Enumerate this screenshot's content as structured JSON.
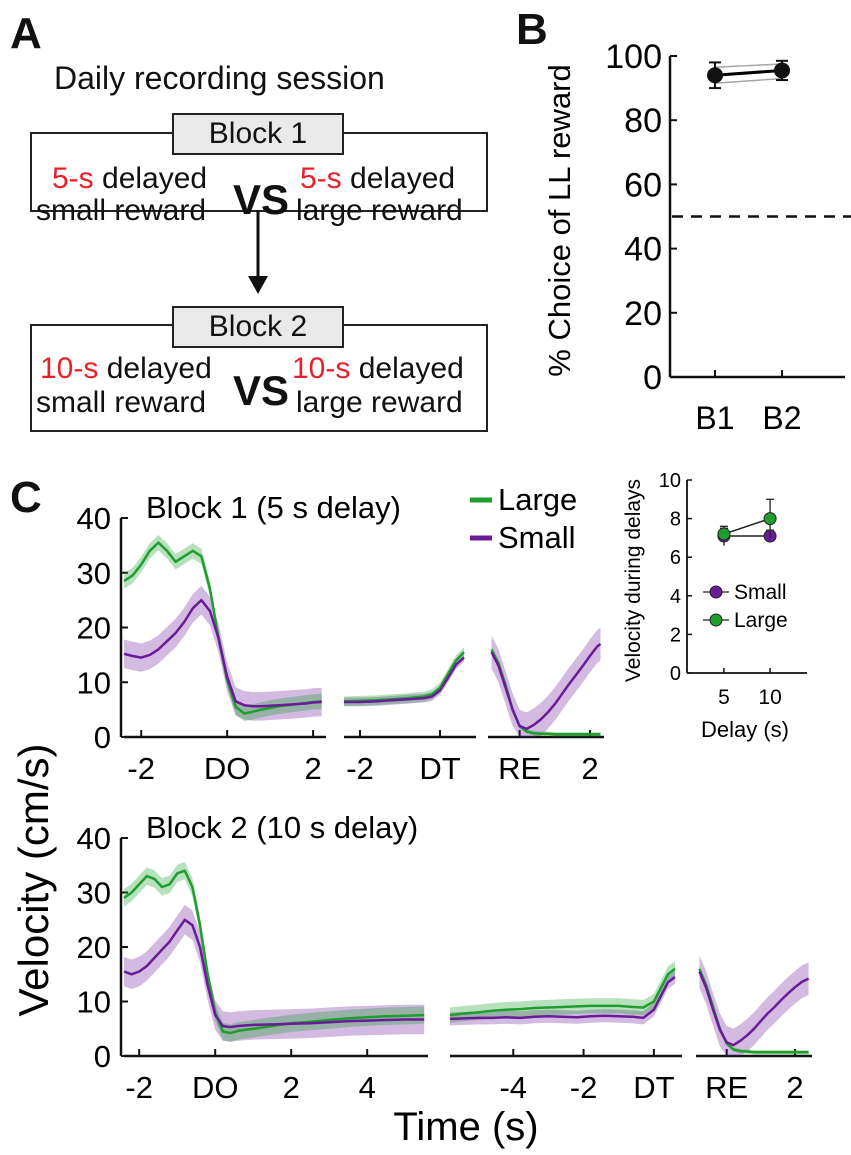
{
  "panelA": {
    "letter": "A",
    "title": "Daily recording  session",
    "block1": {
      "label": "Block 1",
      "left_delay": "5-s",
      "left_line1_rest": " delayed",
      "left_line2": "small reward",
      "vs": "VS",
      "right_delay": "5-s",
      "right_line1_rest": " delayed",
      "right_line2": "large reward"
    },
    "block2": {
      "label": "Block 2",
      "left_delay": "10-s",
      "left_line1_rest": " delayed",
      "left_line2": "small reward",
      "vs": "VS",
      "right_delay": "10-s",
      "right_line1_rest": " delayed",
      "right_line2": "large reward"
    }
  },
  "panelB": {
    "letter": "B"
  },
  "panelC": {
    "letter": "C",
    "ylabel": "Velocity (cm/s)",
    "xlabel": "Time (s)",
    "top_title": "Block 1 (5 s delay)",
    "bottom_title": "Block 2 (10 s delay)",
    "legend": [
      {
        "name": "Large",
        "color": "#1f9e2e"
      },
      {
        "name": "Small",
        "color": "#6a1b9a"
      }
    ]
  },
  "chart_data": [
    {
      "id": "B",
      "type": "scatter",
      "title": "",
      "xlabel": "",
      "ylabel": "% Choice of LL reward",
      "categories": [
        "B1",
        "B2"
      ],
      "values": [
        94,
        95.5
      ],
      "errors": [
        4,
        3
      ],
      "individual_lines": [
        [
          96.5,
          97.5
        ],
        [
          91.5,
          93
        ]
      ],
      "reference_line": 50,
      "ylim": [
        0,
        100
      ],
      "yticks": [
        0,
        20,
        40,
        60,
        80,
        100
      ],
      "colors": {
        "mean": "#000000",
        "individual": "#a6a6a6"
      }
    },
    {
      "id": "C-inset",
      "type": "scatter",
      "title": "",
      "xlabel": "Delay (s)",
      "ylabel": "Velocity during delays",
      "x": [
        5,
        10
      ],
      "xticks": [
        5,
        10
      ],
      "xlim": [
        1,
        14
      ],
      "ylim": [
        0,
        10
      ],
      "yticks": [
        0,
        2,
        4,
        6,
        8,
        10
      ],
      "series": [
        {
          "name": "Small",
          "values": [
            7.1,
            7.1
          ],
          "errors": [
            0.5,
            0.3
          ],
          "color": "#6a1b9a"
        },
        {
          "name": "Large",
          "values": [
            7.2,
            8.0
          ],
          "errors": [
            0.3,
            1.0
          ],
          "color": "#1f9e2e"
        }
      ]
    },
    {
      "id": "C-top",
      "type": "line",
      "title": "Block 1 (5 s delay)",
      "ylabel": "Velocity (cm/s)",
      "ylim": [
        0,
        40
      ],
      "yticks": [
        0,
        10,
        20,
        30,
        40
      ],
      "segments": [
        {
          "xlim": [
            -2.4,
            2.3
          ],
          "xticks": [
            {
              "v": -2,
              "label": "-2"
            },
            {
              "v": 0,
              "label": "DO"
            },
            {
              "v": 2,
              "label": "2"
            }
          ],
          "x": [
            -2.4,
            -2.2,
            -2.0,
            -1.8,
            -1.6,
            -1.4,
            -1.2,
            -1.0,
            -0.8,
            -0.6,
            -0.4,
            -0.2,
            0.0,
            0.2,
            0.4,
            0.6,
            0.8,
            1.0,
            1.2,
            1.4,
            1.6,
            1.8,
            2.0,
            2.2
          ],
          "series": [
            {
              "name": "Large",
              "values": [
                28.5,
                29.5,
                31.5,
                34.0,
                35.5,
                34.0,
                32.0,
                33.0,
                34.0,
                33.0,
                27.0,
                18.0,
                10.5,
                5.5,
                4.3,
                4.6,
                5.0,
                5.3,
                5.6,
                5.8,
                6.0,
                6.2,
                6.4,
                6.5
              ],
              "band": 1.4
            },
            {
              "name": "Small",
              "values": [
                15.2,
                14.8,
                14.5,
                15.0,
                16.0,
                17.5,
                19.0,
                21.0,
                23.5,
                25.0,
                23.0,
                18.0,
                11.0,
                6.5,
                5.8,
                5.6,
                5.6,
                5.7,
                5.8,
                5.9,
                6.0,
                6.1,
                6.3,
                6.4
              ],
              "band": 2.6
            }
          ]
        },
        {
          "xlim": [
            -2.4,
            0.9
          ],
          "xticks": [
            {
              "v": -2,
              "label": "-2"
            },
            {
              "v": 0,
              "label": "DT"
            }
          ],
          "x": [
            -2.4,
            -2.0,
            -1.6,
            -1.2,
            -0.8,
            -0.4,
            -0.2,
            0.0,
            0.2,
            0.4,
            0.6
          ],
          "series": [
            {
              "name": "Large",
              "values": [
                6.5,
                6.6,
                6.7,
                6.9,
                7.1,
                7.4,
                7.8,
                9.0,
                11.5,
                14.0,
                15.5
              ],
              "band": 0.9
            },
            {
              "name": "Small",
              "values": [
                6.4,
                6.4,
                6.5,
                6.7,
                6.9,
                7.1,
                7.4,
                8.5,
                10.8,
                13.2,
                14.5
              ],
              "band": 0.8
            }
          ]
        },
        {
          "xlim": [
            -0.9,
            2.4
          ],
          "xticks": [
            {
              "v": 0,
              "label": "RE"
            },
            {
              "v": 2,
              "label": "2"
            }
          ],
          "x": [
            -0.8,
            -0.6,
            -0.4,
            -0.2,
            0.0,
            0.2,
            0.4,
            0.6,
            0.8,
            1.0,
            1.2,
            1.4,
            1.6,
            1.8,
            2.0,
            2.2,
            2.3
          ],
          "series": [
            {
              "name": "Large",
              "values": [
                16.0,
                13.5,
                9.5,
                5.0,
                2.0,
                1.0,
                0.7,
                0.6,
                0.6,
                0.5,
                0.5,
                0.5,
                0.5,
                0.5,
                0.5,
                0.5,
                0.5
              ],
              "band": 0.4
            },
            {
              "name": "Small",
              "values": [
                15.5,
                13.0,
                9.0,
                5.0,
                2.0,
                1.5,
                2.2,
                3.2,
                4.5,
                6.0,
                7.8,
                9.6,
                11.3,
                13.0,
                14.8,
                16.5,
                17.0
              ],
              "band": 3.0
            }
          ]
        }
      ]
    },
    {
      "id": "C-bottom",
      "type": "line",
      "title": "Block 2 (10 s delay)",
      "xlabel": "Time (s)",
      "ylim": [
        0,
        40
      ],
      "yticks": [
        0,
        10,
        20,
        30,
        40
      ],
      "segments": [
        {
          "xlim": [
            -2.4,
            5.6
          ],
          "xticks": [
            {
              "v": -2,
              "label": "-2"
            },
            {
              "v": 0,
              "label": "DO"
            },
            {
              "v": 2,
              "label": "2"
            },
            {
              "v": 4,
              "label": "4"
            }
          ],
          "x": [
            -2.4,
            -2.2,
            -2.0,
            -1.8,
            -1.6,
            -1.4,
            -1.2,
            -1.0,
            -0.8,
            -0.6,
            -0.4,
            -0.2,
            0.0,
            0.2,
            0.4,
            0.6,
            1.0,
            1.5,
            2.0,
            2.5,
            3.0,
            3.5,
            4.0,
            4.5,
            5.0,
            5.5
          ],
          "series": [
            {
              "name": "Large",
              "values": [
                29.0,
                30.0,
                31.5,
                33.0,
                32.5,
                31.0,
                31.5,
                33.5,
                34.0,
                31.0,
                24.0,
                15.0,
                8.0,
                4.5,
                4.2,
                4.6,
                5.0,
                5.5,
                6.0,
                6.3,
                6.6,
                6.9,
                7.1,
                7.3,
                7.4,
                7.5
              ],
              "band": 1.6
            },
            {
              "name": "Small",
              "values": [
                15.5,
                15.0,
                15.5,
                16.5,
                18.0,
                19.5,
                21.0,
                23.0,
                25.0,
                24.0,
                20.0,
                13.0,
                7.5,
                5.5,
                5.3,
                5.5,
                5.7,
                5.8,
                5.9,
                6.0,
                6.2,
                6.4,
                6.5,
                6.6,
                6.7,
                6.7
              ],
              "band": 2.7
            }
          ]
        },
        {
          "xlim": [
            -5.8,
            0.8
          ],
          "xticks": [
            {
              "v": -4,
              "label": "-4"
            },
            {
              "v": -2,
              "label": "-2"
            },
            {
              "v": 0,
              "label": "DT"
            }
          ],
          "x": [
            -5.8,
            -5.4,
            -5.0,
            -4.6,
            -4.2,
            -3.8,
            -3.4,
            -3.0,
            -2.6,
            -2.2,
            -1.8,
            -1.4,
            -1.0,
            -0.6,
            -0.3,
            0.0,
            0.2,
            0.4,
            0.6
          ],
          "series": [
            {
              "name": "Large",
              "values": [
                7.5,
                7.8,
                8.0,
                8.3,
                8.5,
                8.6,
                8.8,
                8.9,
                9.0,
                9.1,
                9.2,
                9.2,
                9.2,
                9.0,
                8.9,
                10.0,
                12.5,
                15.0,
                16.0
              ],
              "band": 1.4
            },
            {
              "name": "Small",
              "values": [
                6.8,
                6.9,
                7.0,
                7.0,
                7.1,
                7.0,
                7.2,
                7.3,
                7.2,
                7.1,
                7.3,
                7.4,
                7.3,
                7.2,
                7.0,
                8.5,
                11.0,
                13.5,
                14.5
              ],
              "band": 1.2
            }
          ]
        },
        {
          "xlim": [
            -0.9,
            2.5
          ],
          "xticks": [
            {
              "v": 0,
              "label": "RE"
            },
            {
              "v": 2,
              "label": "2"
            }
          ],
          "x": [
            -0.8,
            -0.6,
            -0.4,
            -0.2,
            0.0,
            0.2,
            0.4,
            0.6,
            0.8,
            1.0,
            1.2,
            1.4,
            1.6,
            1.8,
            2.0,
            2.2,
            2.4
          ],
          "series": [
            {
              "name": "Large",
              "values": [
                16.0,
                13.0,
                9.0,
                5.0,
                2.3,
                1.2,
                0.9,
                0.8,
                0.7,
                0.7,
                0.7,
                0.7,
                0.7,
                0.7,
                0.7,
                0.7,
                0.7
              ],
              "band": 0.4
            },
            {
              "name": "Small",
              "values": [
                15.5,
                12.5,
                8.5,
                4.8,
                2.5,
                2.0,
                2.8,
                3.8,
                5.0,
                6.4,
                7.8,
                9.0,
                10.3,
                11.5,
                12.6,
                13.6,
                14.2
              ],
              "band": 3.0
            }
          ]
        }
      ]
    }
  ]
}
